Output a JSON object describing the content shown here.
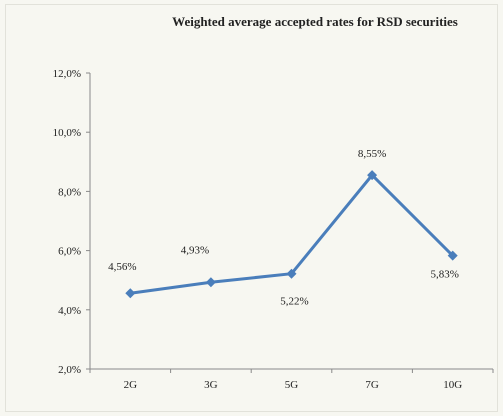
{
  "chart_data": {
    "type": "line",
    "title": "Weighted average accepted rates for RSD securities",
    "xlabel": "",
    "ylabel": "",
    "categories": [
      "2G",
      "3G",
      "5G",
      "7G",
      "10G"
    ],
    "values": [
      4.56,
      4.93,
      5.22,
      8.55,
      5.83
    ],
    "data_labels": [
      "4,56%",
      "4,93%",
      "5,22%",
      "8,55%",
      "5,83%"
    ],
    "ylim": [
      2.0,
      12.0
    ],
    "yticks": [
      2.0,
      4.0,
      6.0,
      8.0,
      10.0,
      12.0
    ],
    "ytick_labels": [
      "2,0%",
      "4,0%",
      "6,0%",
      "8,0%",
      "10,0%",
      "12,0%"
    ],
    "grid": false,
    "legend": "none",
    "line_color": "#4a7ebb",
    "marker": "diamond"
  }
}
